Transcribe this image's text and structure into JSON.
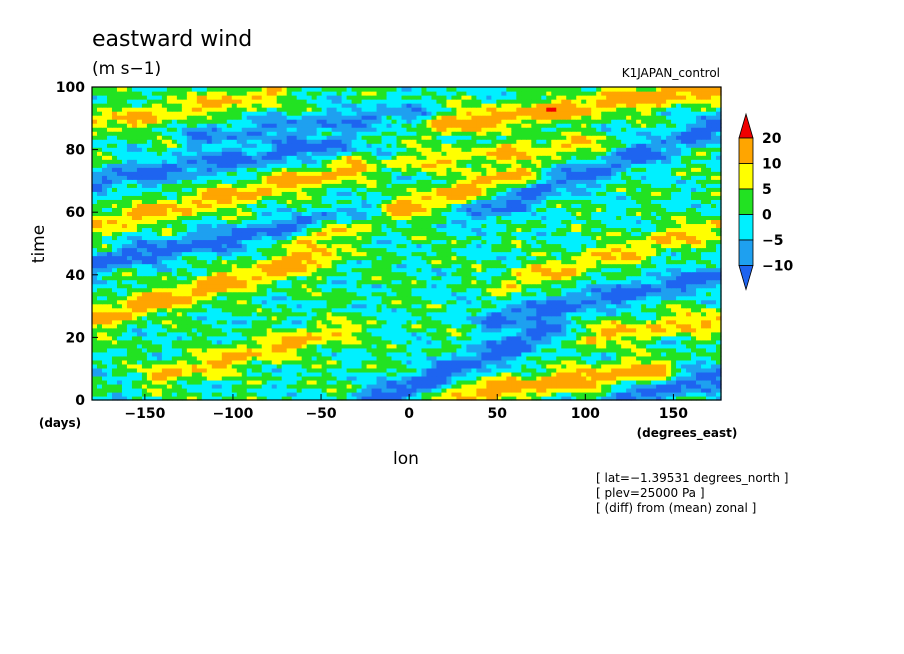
{
  "chart_data": {
    "type": "heatmap",
    "title": "eastward wind",
    "units": "(m s−1)",
    "subtitle_right": "K1JAPAN_control",
    "xlabel": "lon",
    "x_unit": "(degrees_east)",
    "ylabel": "time",
    "y_unit": "(days)",
    "xlim": [
      -180,
      177
    ],
    "ylim": [
      0,
      100
    ],
    "x_ticks": [
      -150,
      -100,
      -50,
      0,
      50,
      100,
      150
    ],
    "y_ticks": [
      0,
      20,
      40,
      60,
      80,
      100
    ],
    "x_tick_labels": [
      "−150",
      "−100",
      "−50",
      "0",
      "50",
      "100",
      "150"
    ],
    "y_tick_labels": [
      "0",
      "20",
      "40",
      "60",
      "80",
      "100"
    ],
    "colorbar": {
      "levels": [
        -10,
        -5,
        0,
        5,
        10,
        20
      ],
      "level_labels": [
        "−10",
        "−5",
        "0",
        "5",
        "10",
        "20"
      ],
      "colors": [
        "#1e64f0",
        "#1ea0f0",
        "#00f0ff",
        "#22e222",
        "#ffff00",
        "#ffa500",
        "#f00000"
      ],
      "extend": "both"
    },
    "notes": [
      "[ lat=−1.39531 degrees_north ]",
      "[ plev=25000 Pa ]",
      "[ (diff) from (mean) zonal ]"
    ],
    "bands": [
      {
        "lon0": -180,
        "t0": 26,
        "lon1": -50,
        "t1": 46,
        "amp": 14
      },
      {
        "lon0": -180,
        "t0": 56,
        "lon1": -30,
        "t1": 74,
        "amp": 12
      },
      {
        "lon0": -60,
        "t0": 52,
        "lon1": 60,
        "t1": 72,
        "amp": 13
      },
      {
        "lon0": 20,
        "t0": 88,
        "lon1": 177,
        "t1": 100,
        "amp": 14
      },
      {
        "lon0": 30,
        "t0": 2,
        "lon1": 140,
        "t1": 10,
        "amp": 14
      },
      {
        "lon0": -180,
        "t0": 88,
        "lon1": -80,
        "t1": 98,
        "amp": 10
      },
      {
        "lon0": 60,
        "t0": 38,
        "lon1": 177,
        "t1": 56,
        "amp": 10
      },
      {
        "lon0": -140,
        "t0": 8,
        "lon1": -40,
        "t1": 22,
        "amp": 11
      },
      {
        "lon0": 100,
        "t0": 20,
        "lon1": 177,
        "t1": 26,
        "amp": 10
      },
      {
        "lon0": 0,
        "t0": 76,
        "lon1": 100,
        "t1": 82,
        "amp": 9
      }
    ],
    "troughs": [
      {
        "lon0": -180,
        "t0": 44,
        "lon1": -20,
        "t1": 60,
        "amp": -13
      },
      {
        "lon0": -180,
        "t0": 70,
        "lon1": -40,
        "t1": 82,
        "amp": -12
      },
      {
        "lon0": -20,
        "t0": 0,
        "lon1": 80,
        "t1": 22,
        "amp": -14
      },
      {
        "lon0": 40,
        "t0": 60,
        "lon1": 177,
        "t1": 88,
        "amp": -12
      },
      {
        "lon0": 50,
        "t0": 26,
        "lon1": 177,
        "t1": 40,
        "amp": -13
      },
      {
        "lon0": 120,
        "t0": 0,
        "lon1": 177,
        "t1": 8,
        "amp": -12
      },
      {
        "lon0": -120,
        "t0": 84,
        "lon1": 0,
        "t1": 92,
        "amp": -9
      }
    ]
  }
}
